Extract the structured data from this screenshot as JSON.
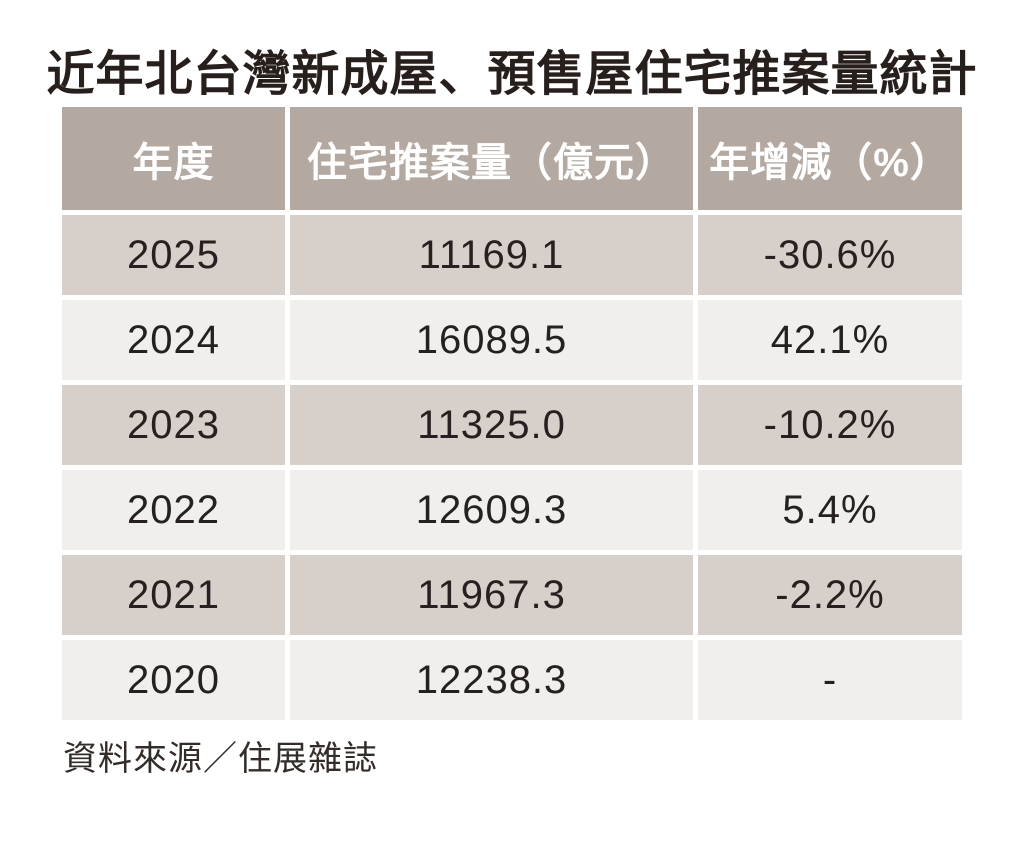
{
  "title": "近年北台灣新成屋、預售屋住宅推案量統計",
  "source_note": "資料來源／住展雜誌",
  "colors": {
    "header_bg": "#b3a9a1",
    "header_text": "#ffffff",
    "row_dark_bg": "#d6cfca",
    "row_light_bg": "#f0efeb",
    "text_dark": "#262020",
    "page_bg": "#ffffff"
  },
  "table": {
    "columns": [
      "年度",
      "住宅推案量（億元）",
      "年增減（%）"
    ],
    "rows": [
      [
        "2025",
        "11169.1",
        "-30.6%"
      ],
      [
        "2024",
        "16089.5",
        "42.1%"
      ],
      [
        "2023",
        "11325.0",
        "-10.2%"
      ],
      [
        "2022",
        "12609.3",
        "5.4%"
      ],
      [
        "2021",
        "11967.3",
        "-2.2%"
      ],
      [
        "2020",
        "12238.3",
        "-"
      ]
    ]
  },
  "chart_data": {
    "type": "table",
    "title": "近年北台灣新成屋、預售屋住宅推案量統計",
    "columns": [
      "年度",
      "住宅推案量（億元）",
      "年增減（%）"
    ],
    "rows": [
      {
        "year": "2025",
        "volume_100m_ntd": 11169.1,
        "yoy_change_pct": -30.6
      },
      {
        "year": "2024",
        "volume_100m_ntd": 16089.5,
        "yoy_change_pct": 42.1
      },
      {
        "year": "2023",
        "volume_100m_ntd": 11325.0,
        "yoy_change_pct": -10.2
      },
      {
        "year": "2022",
        "volume_100m_ntd": 12609.3,
        "yoy_change_pct": 5.4
      },
      {
        "year": "2021",
        "volume_100m_ntd": 11967.3,
        "yoy_change_pct": -2.2
      },
      {
        "year": "2020",
        "volume_100m_ntd": 12238.3,
        "yoy_change_pct": null
      }
    ],
    "source": "資料來源／住展雜誌",
    "layout": {
      "striped_rows": true,
      "header_position": "top"
    }
  }
}
